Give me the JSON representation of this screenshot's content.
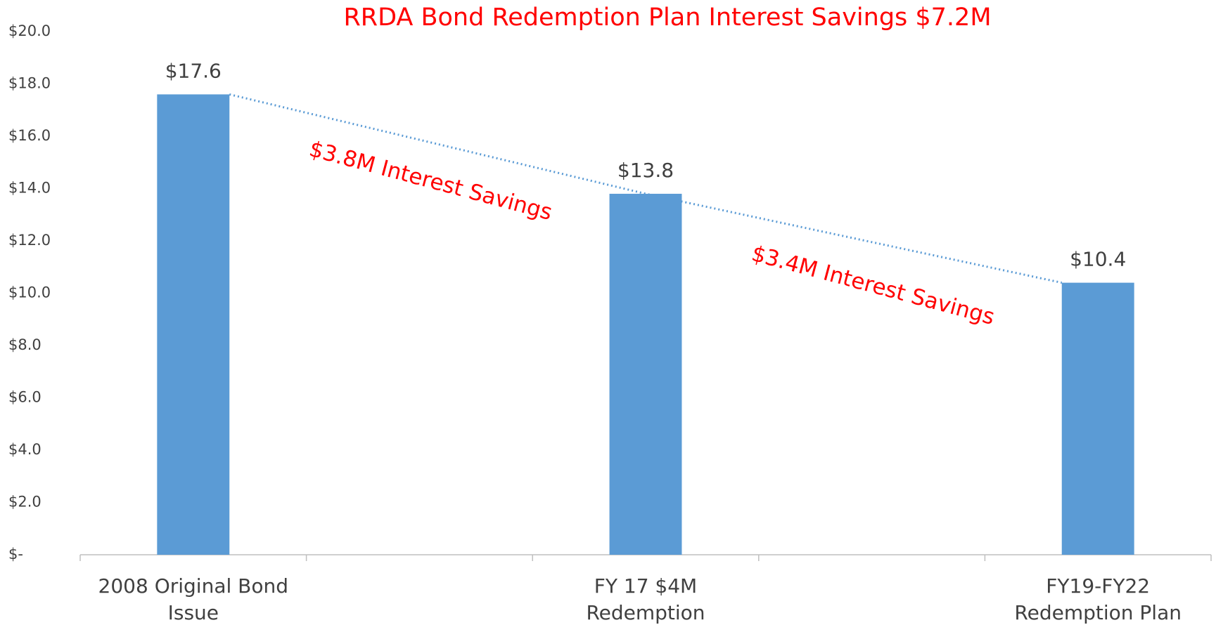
{
  "chart_data": {
    "type": "bar",
    "title": "RRDA Bond Redemption Plan Interest Savings $7.2M",
    "categories": [
      [
        "2008 Original Bond",
        "Issue"
      ],
      null,
      [
        "FY 17 $4M",
        "Redemption"
      ],
      null,
      [
        "FY19-FY22",
        "Redemption Plan"
      ]
    ],
    "values": [
      17.6,
      null,
      13.8,
      null,
      10.4
    ],
    "value_labels": [
      "$17.6",
      null,
      "$13.8",
      null,
      "$10.4"
    ],
    "color": "#5b9bd5",
    "trend_line": {
      "color": "#5b9bd5",
      "style": "dotted"
    },
    "annotations": [
      "$3.8M Interest Savings",
      "$3.4M Interest Savings"
    ],
    "annotation_color": "#ff0000",
    "ylim": [
      0,
      20
    ],
    "yticks": [
      {
        "value": 0,
        "label": "$-"
      },
      {
        "value": 2,
        "label": "$2.0"
      },
      {
        "value": 4,
        "label": "$4.0"
      },
      {
        "value": 6,
        "label": "$6.0"
      },
      {
        "value": 8,
        "label": "$8.0"
      },
      {
        "value": 10,
        "label": "$10.0"
      },
      {
        "value": 12,
        "label": "$12.0"
      },
      {
        "value": 14,
        "label": "$14.0"
      },
      {
        "value": 16,
        "label": "$16.0"
      },
      {
        "value": 18,
        "label": "$18.0"
      },
      {
        "value": 20,
        "label": "$20.0"
      }
    ],
    "grid": false
  }
}
